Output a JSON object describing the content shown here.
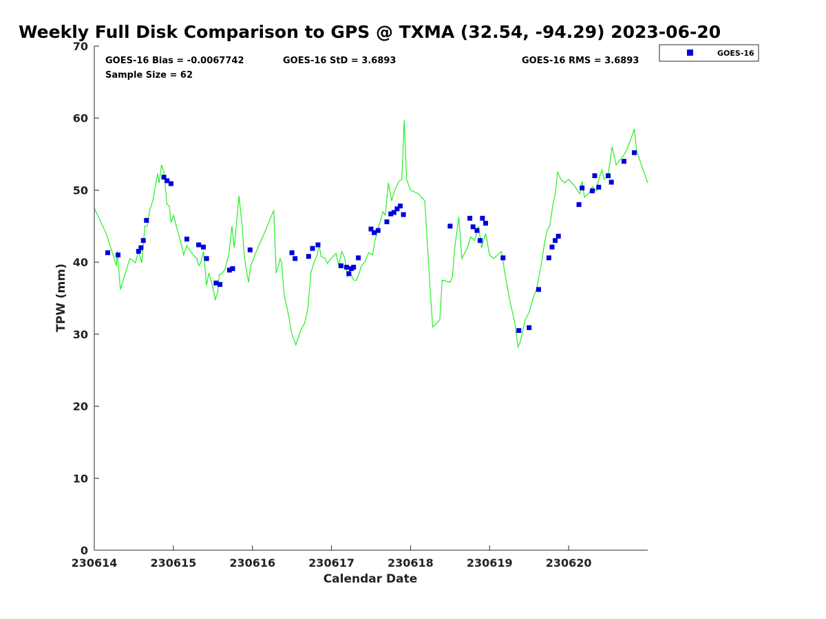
{
  "chart_data": {
    "type": "scatter",
    "title": "Weekly Full Disk Comparison to GPS @ TXMA (32.54, -94.29) 2023-06-20",
    "xlabel": "Calendar Date",
    "ylabel": "TPW (mm)",
    "xlim": [
      0,
      7
    ],
    "ylim": [
      0,
      70
    ],
    "x_ticks": [
      {
        "value": 0,
        "label": "230614"
      },
      {
        "value": 1,
        "label": "230615"
      },
      {
        "value": 2,
        "label": "230616"
      },
      {
        "value": 3,
        "label": "230617"
      },
      {
        "value": 4,
        "label": "230618"
      },
      {
        "value": 5,
        "label": "230619"
      },
      {
        "value": 6,
        "label": "230620"
      }
    ],
    "y_ticks": [
      0,
      10,
      20,
      30,
      40,
      50,
      60,
      70
    ],
    "grid": false,
    "legend": {
      "position": "top-right outside",
      "entries": [
        "GOES-16"
      ]
    },
    "annotations": {
      "bias": "GOES-16 Bias = -0.0067742",
      "std": "GOES-16 StD = 3.6893",
      "rms": "GOES-16 RMS = 3.6893",
      "sample": "Sample Size = 62"
    },
    "colors": {
      "series": "#0000dd",
      "gps": "#22ee22"
    },
    "series": [
      {
        "name": "GOES-16",
        "marker": "square",
        "points": [
          [
            0.17,
            41.3
          ],
          [
            0.3,
            41.0
          ],
          [
            0.56,
            41.5
          ],
          [
            0.59,
            42.0
          ],
          [
            0.62,
            43.0
          ],
          [
            0.66,
            45.8
          ],
          [
            0.88,
            51.8
          ],
          [
            0.92,
            51.3
          ],
          [
            0.97,
            50.9
          ],
          [
            1.17,
            43.2
          ],
          [
            1.32,
            42.4
          ],
          [
            1.38,
            42.1
          ],
          [
            1.42,
            40.5
          ],
          [
            1.54,
            37.1
          ],
          [
            1.59,
            36.9
          ],
          [
            1.71,
            38.9
          ],
          [
            1.75,
            39.1
          ],
          [
            1.97,
            41.7
          ],
          [
            2.5,
            41.3
          ],
          [
            2.54,
            40.5
          ],
          [
            2.71,
            40.8
          ],
          [
            2.76,
            41.9
          ],
          [
            2.83,
            42.4
          ],
          [
            3.12,
            39.5
          ],
          [
            3.19,
            39.3
          ],
          [
            3.22,
            38.4
          ],
          [
            3.25,
            39.1
          ],
          [
            3.28,
            39.3
          ],
          [
            3.34,
            40.6
          ],
          [
            3.5,
            44.6
          ],
          [
            3.54,
            44.1
          ],
          [
            3.59,
            44.4
          ],
          [
            3.7,
            45.6
          ],
          [
            3.75,
            46.7
          ],
          [
            3.79,
            46.9
          ],
          [
            3.83,
            47.4
          ],
          [
            3.87,
            47.8
          ],
          [
            3.91,
            46.6
          ],
          [
            4.5,
            45.0
          ],
          [
            4.75,
            46.1
          ],
          [
            4.79,
            44.9
          ],
          [
            4.84,
            44.4
          ],
          [
            4.88,
            43.0
          ],
          [
            4.91,
            46.1
          ],
          [
            4.95,
            45.4
          ],
          [
            5.17,
            40.6
          ],
          [
            5.37,
            30.5
          ],
          [
            5.5,
            30.9
          ],
          [
            5.62,
            36.2
          ],
          [
            5.75,
            40.6
          ],
          [
            5.79,
            42.1
          ],
          [
            5.83,
            43.0
          ],
          [
            5.87,
            43.6
          ],
          [
            6.13,
            48.0
          ],
          [
            6.17,
            50.3
          ],
          [
            6.3,
            49.9
          ],
          [
            6.33,
            52.0
          ],
          [
            6.38,
            50.4
          ],
          [
            6.5,
            52.0
          ],
          [
            6.54,
            51.1
          ],
          [
            6.7,
            54.0
          ],
          [
            6.83,
            55.2
          ]
        ]
      },
      {
        "name": "",
        "mark": "line",
        "points": [
          [
            0.0,
            47.5
          ],
          [
            0.15,
            44.0
          ],
          [
            0.28,
            39.5
          ],
          [
            0.29,
            41.5
          ],
          [
            0.33,
            36.2
          ],
          [
            0.38,
            38.0
          ],
          [
            0.45,
            40.5
          ],
          [
            0.52,
            39.9
          ],
          [
            0.56,
            41.5
          ],
          [
            0.6,
            39.9
          ],
          [
            0.64,
            45.0
          ],
          [
            0.67,
            45.0
          ],
          [
            0.7,
            47.2
          ],
          [
            0.74,
            48.5
          ],
          [
            0.8,
            52.3
          ],
          [
            0.82,
            51.0
          ],
          [
            0.85,
            53.5
          ],
          [
            0.88,
            52.5
          ],
          [
            0.92,
            48.0
          ],
          [
            0.95,
            47.8
          ],
          [
            0.97,
            45.5
          ],
          [
            1.0,
            46.5
          ],
          [
            1.05,
            44.5
          ],
          [
            1.1,
            42.5
          ],
          [
            1.13,
            41.0
          ],
          [
            1.17,
            42.3
          ],
          [
            1.25,
            41.0
          ],
          [
            1.3,
            40.5
          ],
          [
            1.32,
            39.5
          ],
          [
            1.35,
            40.0
          ],
          [
            1.38,
            41.5
          ],
          [
            1.42,
            36.8
          ],
          [
            1.45,
            38.5
          ],
          [
            1.5,
            36.5
          ],
          [
            1.53,
            34.8
          ],
          [
            1.56,
            35.8
          ],
          [
            1.58,
            38.2
          ],
          [
            1.62,
            38.5
          ],
          [
            1.65,
            38.9
          ],
          [
            1.7,
            41.0
          ],
          [
            1.74,
            45.0
          ],
          [
            1.77,
            42.0
          ],
          [
            1.8,
            45.5
          ],
          [
            1.83,
            49.2
          ],
          [
            1.87,
            45.0
          ],
          [
            1.9,
            40.5
          ],
          [
            1.93,
            38.5
          ],
          [
            1.95,
            37.2
          ],
          [
            1.98,
            39.5
          ],
          [
            2.05,
            41.5
          ],
          [
            2.15,
            44.0
          ],
          [
            2.27,
            47.2
          ],
          [
            2.3,
            38.5
          ],
          [
            2.33,
            39.5
          ],
          [
            2.35,
            40.5
          ],
          [
            2.37,
            40.0
          ],
          [
            2.4,
            35.5
          ],
          [
            2.45,
            33.0
          ],
          [
            2.5,
            30.0
          ],
          [
            2.55,
            28.5
          ],
          [
            2.58,
            29.5
          ],
          [
            2.62,
            30.8
          ],
          [
            2.66,
            31.5
          ],
          [
            2.7,
            33.5
          ],
          [
            2.74,
            38.5
          ],
          [
            2.78,
            40.0
          ],
          [
            2.82,
            41.0
          ],
          [
            2.84,
            42.5
          ],
          [
            2.87,
            40.8
          ],
          [
            2.92,
            40.5
          ],
          [
            2.95,
            39.8
          ],
          [
            2.98,
            40.3
          ],
          [
            3.02,
            40.8
          ],
          [
            3.06,
            41.2
          ],
          [
            3.09,
            39.5
          ],
          [
            3.13,
            41.5
          ],
          [
            3.17,
            40.5
          ],
          [
            3.2,
            38.0
          ],
          [
            3.24,
            38.5
          ],
          [
            3.28,
            37.5
          ],
          [
            3.32,
            37.5
          ],
          [
            3.35,
            38.5
          ],
          [
            3.38,
            39.5
          ],
          [
            3.42,
            40.0
          ],
          [
            3.47,
            41.3
          ],
          [
            3.52,
            41.0
          ],
          [
            3.55,
            43.0
          ],
          [
            3.6,
            45.0
          ],
          [
            3.65,
            47.0
          ],
          [
            3.68,
            46.5
          ],
          [
            3.72,
            51.0
          ],
          [
            3.76,
            48.5
          ],
          [
            3.8,
            50.0
          ],
          [
            3.85,
            51.2
          ],
          [
            3.89,
            51.5
          ],
          [
            3.92,
            59.7
          ],
          [
            3.95,
            51.5
          ],
          [
            4.0,
            50.0
          ],
          [
            4.1,
            49.5
          ],
          [
            4.18,
            48.5
          ],
          [
            4.25,
            36.0
          ],
          [
            4.28,
            31.0
          ],
          [
            4.33,
            31.5
          ],
          [
            4.37,
            32.0
          ],
          [
            4.4,
            37.5
          ],
          [
            4.5,
            37.2
          ],
          [
            4.53,
            38.0
          ],
          [
            4.56,
            42.0
          ],
          [
            4.61,
            46.3
          ],
          [
            4.65,
            40.5
          ],
          [
            4.72,
            42.0
          ],
          [
            4.76,
            43.5
          ],
          [
            4.81,
            43.0
          ],
          [
            4.86,
            45.0
          ],
          [
            4.9,
            42.0
          ],
          [
            4.95,
            44.0
          ],
          [
            5.0,
            41.0
          ],
          [
            5.05,
            40.5
          ],
          [
            5.1,
            41.0
          ],
          [
            5.15,
            41.5
          ],
          [
            5.2,
            38.0
          ],
          [
            5.26,
            34.5
          ],
          [
            5.32,
            31.5
          ],
          [
            5.36,
            28.2
          ],
          [
            5.39,
            29.0
          ],
          [
            5.42,
            30.5
          ],
          [
            5.45,
            32.0
          ],
          [
            5.5,
            33.0
          ],
          [
            5.55,
            35.0
          ],
          [
            5.6,
            36.5
          ],
          [
            5.65,
            39.5
          ],
          [
            5.7,
            43.0
          ],
          [
            5.73,
            44.5
          ],
          [
            5.76,
            45.0
          ],
          [
            5.8,
            48.0
          ],
          [
            5.83,
            49.5
          ],
          [
            5.86,
            52.5
          ],
          [
            5.9,
            51.5
          ],
          [
            5.95,
            51.0
          ],
          [
            6.0,
            51.5
          ],
          [
            6.08,
            50.5
          ],
          [
            6.14,
            49.5
          ],
          [
            6.17,
            51.2
          ],
          [
            6.2,
            49.0
          ],
          [
            6.25,
            49.5
          ],
          [
            6.3,
            50.5
          ],
          [
            6.35,
            49.9
          ],
          [
            6.38,
            51.5
          ],
          [
            6.42,
            52.8
          ],
          [
            6.45,
            51.5
          ],
          [
            6.5,
            52.2
          ],
          [
            6.55,
            56.0
          ],
          [
            6.6,
            53.5
          ],
          [
            6.65,
            54.2
          ],
          [
            6.7,
            54.9
          ],
          [
            6.75,
            56.0
          ],
          [
            6.8,
            57.5
          ],
          [
            6.83,
            58.5
          ],
          [
            6.86,
            55.5
          ],
          [
            6.92,
            53.5
          ],
          [
            7.0,
            51.0
          ]
        ]
      }
    ]
  }
}
